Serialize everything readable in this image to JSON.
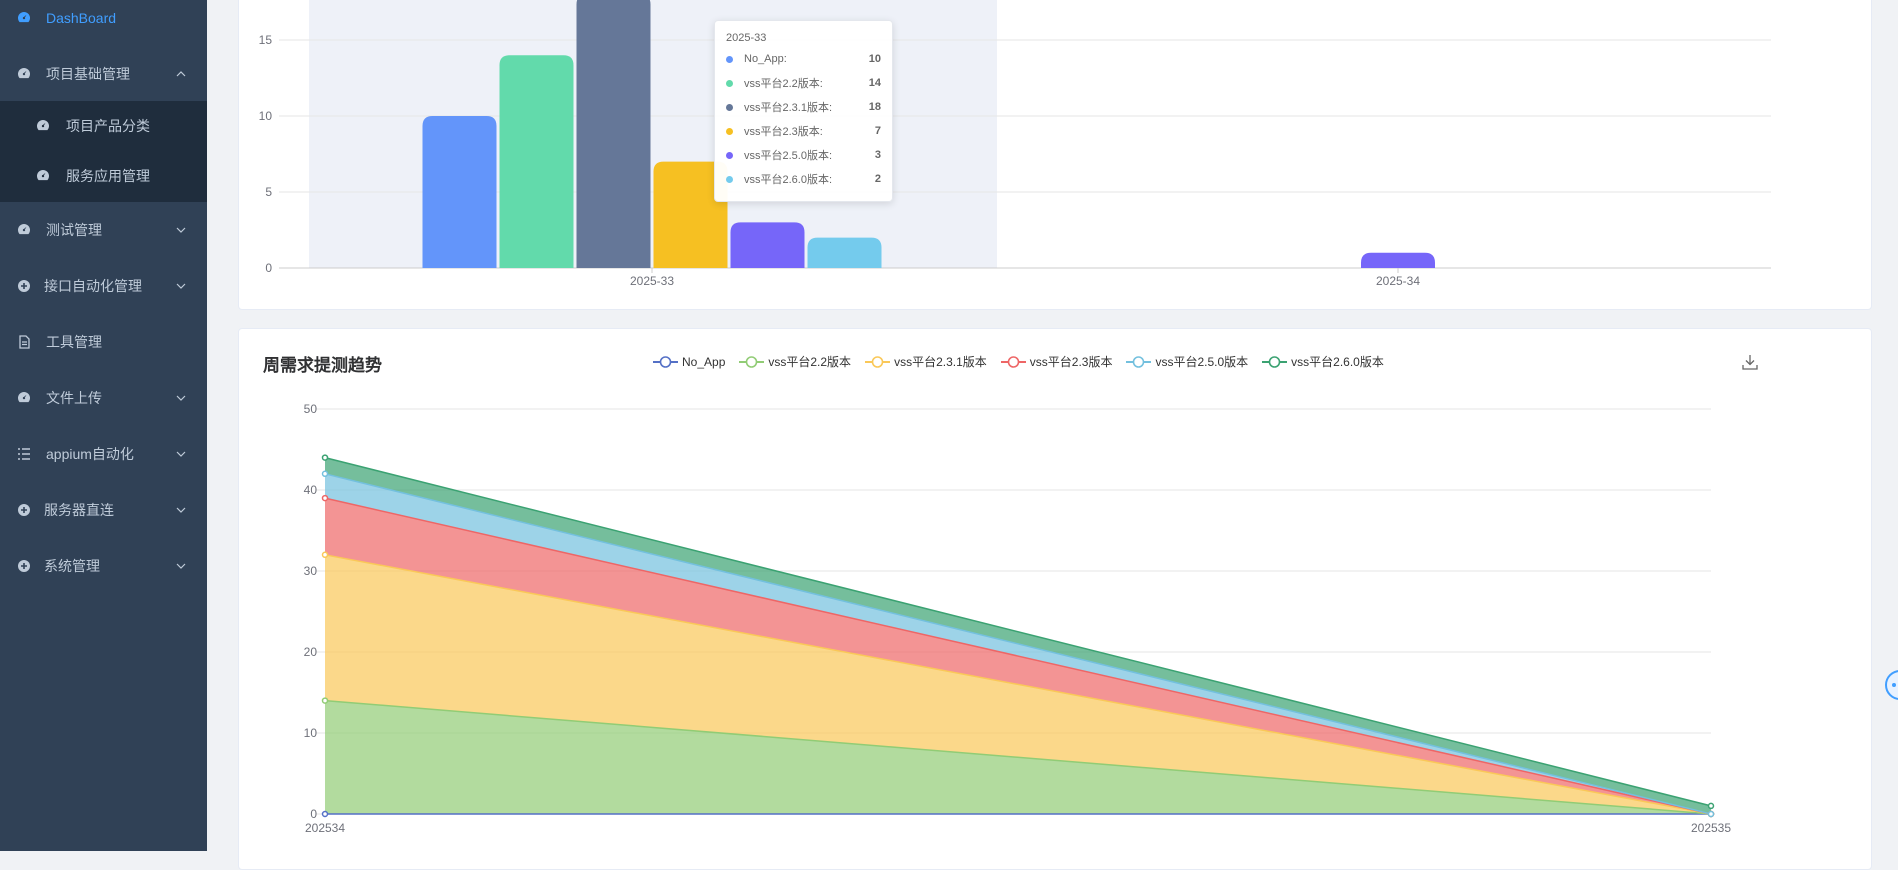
{
  "sidebar": {
    "items": [
      {
        "label": "DashBoard",
        "icon": "dashboard-icon",
        "active": true
      },
      {
        "label": "项目基础管理",
        "icon": "dashboard-icon",
        "expanded": true,
        "children": [
          {
            "label": "项目产品分类",
            "icon": "dashboard-icon"
          },
          {
            "label": "服务应用管理",
            "icon": "dashboard-icon"
          }
        ]
      },
      {
        "label": "测试管理",
        "icon": "dashboard-icon"
      },
      {
        "label": "接口自动化管理",
        "icon": "plus-circle-icon"
      },
      {
        "label": "工具管理",
        "icon": "document-icon"
      },
      {
        "label": "文件上传",
        "icon": "dashboard-icon"
      },
      {
        "label": "appium自动化",
        "icon": "list-icon"
      },
      {
        "label": "服务器直连",
        "icon": "plus-circle-icon"
      },
      {
        "label": "系统管理",
        "icon": "plus-circle-icon"
      }
    ]
  },
  "colors": {
    "sidebar_bg": "#304156",
    "submenu_bg": "#1f2d3d",
    "accent": "#409eff",
    "bar": [
      "#6395fa",
      "#62daab",
      "#657798",
      "#f6c022",
      "#7666f9",
      "#74cbed"
    ],
    "area": [
      "#5470c6",
      "#91cc75",
      "#fac858",
      "#ee6666",
      "#73c0de",
      "#3ba272"
    ]
  },
  "bar_card": {
    "chart_data": {
      "type": "bar",
      "categories": [
        "2025-33",
        "2025-34"
      ],
      "series": [
        {
          "name": "No_App",
          "values": [
            10,
            0
          ]
        },
        {
          "name": "vss平台2.2版本",
          "values": [
            14,
            0
          ]
        },
        {
          "name": "vss平台2.3.1版本",
          "values": [
            18,
            0
          ]
        },
        {
          "name": "vss平台2.3版本",
          "values": [
            7,
            0
          ]
        },
        {
          "name": "vss平台2.5.0版本",
          "values": [
            3,
            1
          ]
        },
        {
          "name": "vss平台2.6.0版本",
          "values": [
            2,
            0
          ]
        }
      ],
      "y_ticks": [
        0,
        5,
        10,
        15
      ],
      "grid": true
    },
    "tooltip": {
      "title": "2025-33",
      "rows": [
        {
          "name": "No_App:",
          "value": "10"
        },
        {
          "name": "vss平台2.2版本:",
          "value": "14"
        },
        {
          "name": "vss平台2.3.1版本:",
          "value": "18"
        },
        {
          "name": "vss平台2.3版本:",
          "value": "7"
        },
        {
          "name": "vss平台2.5.0版本:",
          "value": "3"
        },
        {
          "name": "vss平台2.6.0版本:",
          "value": "2"
        }
      ]
    }
  },
  "area_card": {
    "title": "周需求提测趋势",
    "chart_data": {
      "type": "area",
      "stacked": true,
      "categories": [
        "202534",
        "202535"
      ],
      "series": [
        {
          "name": "No_App",
          "values": [
            0,
            0
          ]
        },
        {
          "name": "vss平台2.2版本",
          "values": [
            14,
            0
          ]
        },
        {
          "name": "vss平台2.3.1版本",
          "values": [
            18,
            0
          ]
        },
        {
          "name": "vss平台2.3版本",
          "values": [
            7,
            0
          ]
        },
        {
          "name": "vss平台2.5.0版本",
          "values": [
            3,
            0
          ]
        },
        {
          "name": "vss平台2.6.0版本",
          "values": [
            2,
            1
          ]
        }
      ],
      "y_ticks": [
        0,
        10,
        20,
        30,
        40,
        50
      ],
      "ylim": [
        0,
        50
      ],
      "legend_position": "top",
      "grid": true
    }
  }
}
